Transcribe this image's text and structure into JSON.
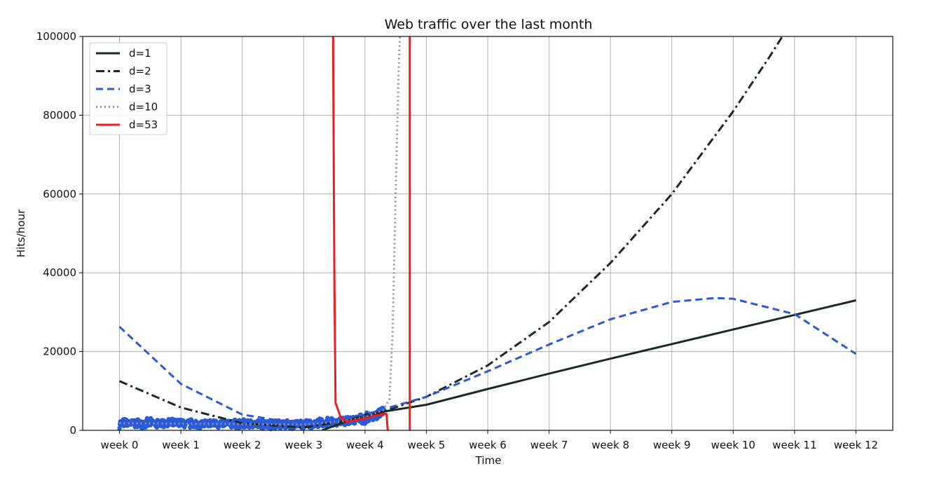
{
  "chart_data": {
    "type": "line",
    "title": "Web traffic over the last month",
    "xlabel": "Time",
    "ylabel": "Hits/hour",
    "categories": [
      "week 0",
      "week 1",
      "week 2",
      "week 3",
      "week 4",
      "week 5",
      "week 6",
      "week 7",
      "week 8",
      "week 9",
      "week 10",
      "week 11",
      "week 12"
    ],
    "y_ticks": [
      "0",
      "20000",
      "40000",
      "60000",
      "80000",
      "100000"
    ],
    "xlim": [
      -0.6,
      12.6
    ],
    "ylim": [
      0,
      100000
    ],
    "grid": true,
    "legend_position": "top-left",
    "scatter": {
      "color": "#2a5bd7",
      "x_range_weeks": [
        0,
        4.3
      ],
      "trend": [
        [
          0,
          1800
        ],
        [
          1,
          1700
        ],
        [
          2,
          1600
        ],
        [
          3,
          1500
        ],
        [
          3.5,
          2100
        ],
        [
          4,
          3000
        ],
        [
          4.3,
          4500
        ]
      ],
      "spread": 900
    },
    "series": [
      {
        "name": "d=1",
        "color": "#1c2b1f",
        "dash": "solid",
        "points": [
          [
            3.3,
            0
          ],
          [
            4,
            4000
          ],
          [
            5,
            6500
          ],
          [
            6,
            10500
          ],
          [
            7,
            14400
          ],
          [
            8,
            18200
          ],
          [
            9,
            21900
          ],
          [
            10,
            25600
          ],
          [
            11,
            29300
          ],
          [
            12,
            33000
          ]
        ]
      },
      {
        "name": "d=2",
        "color": "#1c2b1f",
        "dash": "dashdot",
        "points": [
          [
            0,
            12500
          ],
          [
            1,
            5800
          ],
          [
            2,
            1800
          ],
          [
            3,
            700
          ],
          [
            4,
            3200
          ],
          [
            5,
            8500
          ],
          [
            6,
            16500
          ],
          [
            7,
            27500
          ],
          [
            8,
            42500
          ],
          [
            9,
            60000
          ],
          [
            10,
            81000
          ],
          [
            10.6,
            95000
          ],
          [
            10.8,
            100000
          ]
        ]
      },
      {
        "name": "d=3",
        "color": "#2a5bd7",
        "dash": "dashed",
        "points": [
          [
            0,
            26300
          ],
          [
            1,
            11800
          ],
          [
            2,
            4000
          ],
          [
            3,
            1500
          ],
          [
            4,
            4000
          ],
          [
            5,
            8500
          ],
          [
            6,
            15000
          ],
          [
            7,
            21800
          ],
          [
            8,
            28200
          ],
          [
            9,
            32600
          ],
          [
            9.7,
            33600
          ],
          [
            10,
            33400
          ],
          [
            11,
            29500
          ],
          [
            12,
            19400
          ]
        ]
      },
      {
        "name": "d=10",
        "color": "#9a8ea8",
        "dash": "dotted",
        "points": [
          [
            0,
            1800
          ],
          [
            1,
            1700
          ],
          [
            2,
            1600
          ],
          [
            3,
            1500
          ],
          [
            3.6,
            2200
          ],
          [
            4,
            3300
          ],
          [
            4.3,
            5200
          ],
          [
            4.4,
            8000
          ],
          [
            4.45,
            25000
          ],
          [
            4.5,
            60000
          ],
          [
            4.55,
            92000
          ],
          [
            4.57,
            100000
          ]
        ]
      },
      {
        "name": "d=53",
        "color": "#ee1c1c",
        "dash": "solid",
        "points": [
          [
            3.48,
            100000
          ],
          [
            3.5,
            40000
          ],
          [
            3.52,
            7000
          ],
          [
            3.6,
            3500
          ],
          [
            3.7,
            2200
          ],
          [
            4,
            3000
          ],
          [
            4.2,
            3800
          ],
          [
            4.35,
            4200
          ],
          [
            4.37,
            0
          ]
        ],
        "extra_segments": [
          {
            "points": [
              [
                4.73,
                0
              ],
              [
                4.73,
                100000
              ]
            ]
          }
        ]
      }
    ]
  }
}
